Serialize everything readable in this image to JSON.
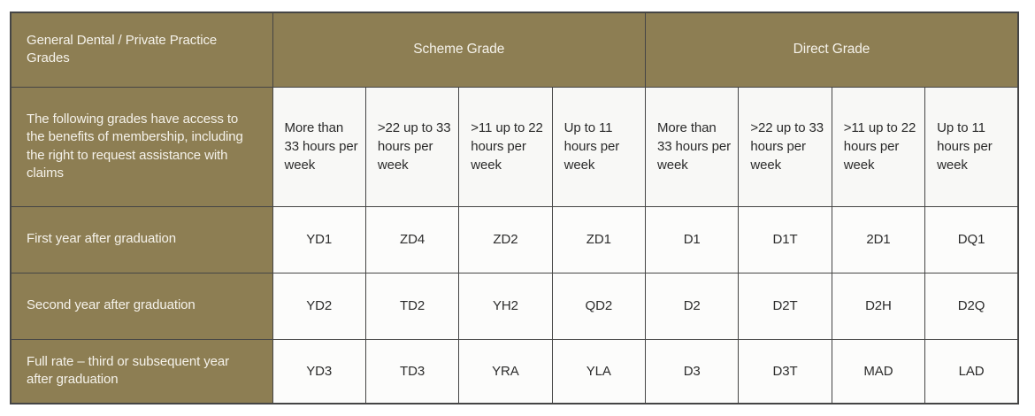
{
  "colors": {
    "olive_header_bg": "#8d7e53",
    "header_text": "#f5f2ea",
    "hours_header_bg": "#f8f8f6",
    "cell_bg": "#fcfcfb",
    "cell_text": "#2b2b2b",
    "border": "#454545"
  },
  "table": {
    "corner_header": "General Dental / Private Practice Grades",
    "group_headers": [
      {
        "label": "Scheme Grade"
      },
      {
        "label": "Direct Grade"
      }
    ],
    "description_header": "The following grades have access to the benefits of membership, including the right to request assistance with claims",
    "hour_columns": [
      "More than 33 hours per week",
      ">22 up to 33 hours per week",
      ">11 up to 22 hours per week",
      "Up to 11 hours per week",
      "More than 33 hours per week",
      ">22 up to 33 hours per week",
      ">11 up to 22 hours per week",
      "Up to 11 hours per week"
    ],
    "rows": [
      {
        "label": "First year after graduation",
        "values": [
          "YD1",
          "ZD4",
          "ZD2",
          "ZD1",
          "D1",
          "D1T",
          "2D1",
          "DQ1"
        ]
      },
      {
        "label": "Second year after graduation",
        "values": [
          "YD2",
          "TD2",
          "YH2",
          "QD2",
          "D2",
          "D2T",
          "D2H",
          "D2Q"
        ]
      },
      {
        "label": "Full rate – third or subsequent year after graduation",
        "values": [
          "YD3",
          "TD3",
          "YRA",
          "YLA",
          "D3",
          "D3T",
          "MAD",
          "LAD"
        ]
      }
    ]
  }
}
